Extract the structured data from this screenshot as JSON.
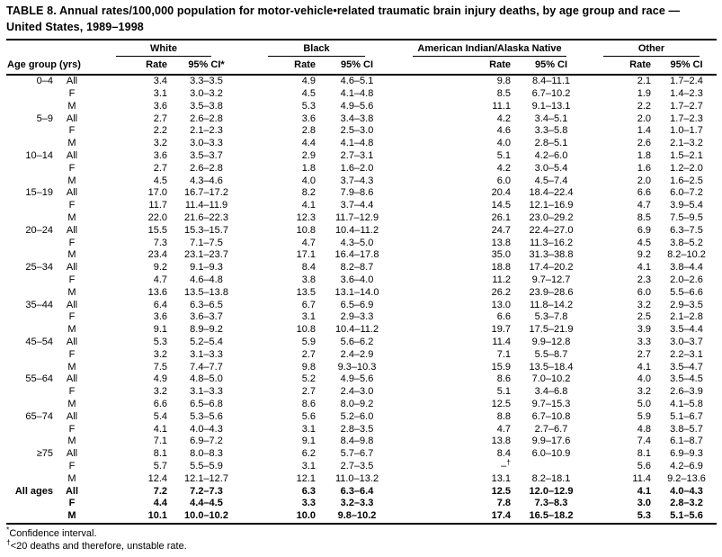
{
  "title": {
    "text": "TABLE 8. Annual rates/100,000 population for motor-vehicle•related traumatic brain injury deaths, by age group and race — United States, 1989–1998"
  },
  "table": {
    "group_headers": [
      "White",
      "Black",
      "American Indian/Alaska Native",
      "Other"
    ],
    "col_headers": {
      "age_group": "Age group (yrs)",
      "rate": "Rate",
      "ci_starred": "95% CI*",
      "ci": "95% CI"
    },
    "bold_from": 33,
    "rows": [
      [
        "0–4",
        "All",
        "3.4",
        "3.3–3.5",
        "4.9",
        "4.6–5.1",
        "9.8",
        "8.4–11.1",
        "2.1",
        "1.7–2.4"
      ],
      [
        "",
        "F",
        "3.1",
        "3.0–3.2",
        "4.5",
        "4.1–4.8",
        "8.5",
        "6.7–10.2",
        "1.9",
        "1.4–2.3"
      ],
      [
        "",
        "M",
        "3.6",
        "3.5–3.8",
        "5.3",
        "4.9–5.6",
        "11.1",
        "9.1–13.1",
        "2.2",
        "1.7–2.7"
      ],
      [
        "5–9",
        "All",
        "2.7",
        "2.6–2.8",
        "3.6",
        "3.4–3.8",
        "4.2",
        "3.4–5.1",
        "2.0",
        "1.7–2.3"
      ],
      [
        "",
        "F",
        "2.2",
        "2.1–2.3",
        "2.8",
        "2.5–3.0",
        "4.6",
        "3.3–5.8",
        "1.4",
        "1.0–1.7"
      ],
      [
        "",
        "M",
        "3.2",
        "3.0–3.3",
        "4.4",
        "4.1–4.8",
        "4.0",
        "2.8–5.1",
        "2.6",
        "2.1–3.2"
      ],
      [
        "10–14",
        "All",
        "3.6",
        "3.5–3.7",
        "2.9",
        "2.7–3.1",
        "5.1",
        "4.2–6.0",
        "1.8",
        "1.5–2.1"
      ],
      [
        "",
        "F",
        "2.7",
        "2.6–2.8",
        "1.8",
        "1.6–2.0",
        "4.2",
        "3.0–5.4",
        "1.6",
        "1.2–2.0"
      ],
      [
        "",
        "M",
        "4.5",
        "4.3–4.6",
        "4.0",
        "3.7–4.3",
        "6.0",
        "4.5–7.4",
        "2.0",
        "1.6–2.5"
      ],
      [
        "15–19",
        "All",
        "17.0",
        "16.7–17.2",
        "8.2",
        "7.9–8.6",
        "20.4",
        "18.4–22.4",
        "6.6",
        "6.0–7.2"
      ],
      [
        "",
        "F",
        "11.7",
        "11.4–11.9",
        "4.1",
        "3.7–4.4",
        "14.5",
        "12.1–16.9",
        "4.7",
        "3.9–5.4"
      ],
      [
        "",
        "M",
        "22.0",
        "21.6–22.3",
        "12.3",
        "11.7–12.9",
        "26.1",
        "23.0–29.2",
        "8.5",
        "7.5–9.5"
      ],
      [
        "20–24",
        "All",
        "15.5",
        "15.3–15.7",
        "10.8",
        "10.4–11.2",
        "24.7",
        "22.4–27.0",
        "6.9",
        "6.3–7.5"
      ],
      [
        "",
        "F",
        "7.3",
        "7.1–7.5",
        "4.7",
        "4.3–5.0",
        "13.8",
        "11.3–16.2",
        "4.5",
        "3.8–5.2"
      ],
      [
        "",
        "M",
        "23.4",
        "23.1–23.7",
        "17.1",
        "16.4–17.8",
        "35.0",
        "31.3–38.8",
        "9.2",
        "8.2–10.2"
      ],
      [
        "25–34",
        "All",
        "9.2",
        "9.1–9.3",
        "8.4",
        "8.2–8.7",
        "18.8",
        "17.4–20.2",
        "4.1",
        "3.8–4.4"
      ],
      [
        "",
        "F",
        "4.7",
        "4.6–4.8",
        "3.8",
        "3.6–4.0",
        "11.2",
        "9.7–12.7",
        "2.3",
        "2.0–2.6"
      ],
      [
        "",
        "M",
        "13.6",
        "13.5–13.8",
        "13.5",
        "13.1–14.0",
        "26.2",
        "23.9–28.6",
        "6.0",
        "5.5–6.6"
      ],
      [
        "35–44",
        "All",
        "6.4",
        "6.3–6.5",
        "6.7",
        "6.5–6.9",
        "13.0",
        "11.8–14.2",
        "3.2",
        "2.9–3.5"
      ],
      [
        "",
        "F",
        "3.6",
        "3.6–3.7",
        "3.1",
        "2.9–3.3",
        "6.6",
        "5.3–7.8",
        "2.5",
        "2.1–2.8"
      ],
      [
        "",
        "M",
        "9.1",
        "8.9–9.2",
        "10.8",
        "10.4–11.2",
        "19.7",
        "17.5–21.9",
        "3.9",
        "3.5–4.4"
      ],
      [
        "45–54",
        "All",
        "5.3",
        "5.2–5.4",
        "5.9",
        "5.6–6.2",
        "11.4",
        "9.9–12.8",
        "3.3",
        "3.0–3.7"
      ],
      [
        "",
        "F",
        "3.2",
        "3.1–3.3",
        "2.7",
        "2.4–2.9",
        "7.1",
        "5.5–8.7",
        "2.7",
        "2.2–3.1"
      ],
      [
        "",
        "M",
        "7.5",
        "7.4–7.7",
        "9.8",
        "9.3–10.3",
        "15.9",
        "13.5–18.4",
        "4.1",
        "3.5–4.7"
      ],
      [
        "55–64",
        "All",
        "4.9",
        "4.8–5.0",
        "5.2",
        "4.9–5.6",
        "8.6",
        "7.0–10.2",
        "4.0",
        "3.5–4.5"
      ],
      [
        "",
        "F",
        "3.2",
        "3.1–3.3",
        "2.7",
        "2.4–3.0",
        "5.1",
        "3.4–6.8",
        "3.2",
        "2.6–3.9"
      ],
      [
        "",
        "M",
        "6.6",
        "6.5–6.8",
        "8.6",
        "8.0–9.2",
        "12.5",
        "9.7–15.3",
        "5.0",
        "4.1–5.8"
      ],
      [
        "65–74",
        "All",
        "5.4",
        "5.3–5.6",
        "5.6",
        "5.2–6.0",
        "8.8",
        "6.7–10.8",
        "5.9",
        "5.1–6.7"
      ],
      [
        "",
        "F",
        "4.1",
        "4.0–4.3",
        "3.1",
        "2.8–3.5",
        "4.7",
        "2.7–6.7",
        "4.8",
        "3.8–5.7"
      ],
      [
        "",
        "M",
        "7.1",
        "6.9–7.2",
        "9.1",
        "8.4–9.8",
        "13.8",
        "9.9–17.6",
        "7.4",
        "6.1–8.7"
      ],
      [
        "≥75",
        "All",
        "8.1",
        "8.0–8.3",
        "6.2",
        "5.7–6.7",
        "8.4",
        "6.0–10.9",
        "8.1",
        "6.9–9.3"
      ],
      [
        "",
        "F",
        "5.7",
        "5.5–5.9",
        "3.1",
        "2.7–3.5",
        "–†",
        "",
        "5.6",
        "4.2–6.9"
      ],
      [
        "",
        "M",
        "12.4",
        "12.1–12.7",
        "12.1",
        "11.0–13.2",
        "13.1",
        "8.2–18.1",
        "11.4",
        "9.2–13.6"
      ],
      [
        "All ages",
        "All",
        "7.2",
        "7.2–7.3",
        "6.3",
        "6.3–6.4",
        "12.5",
        "12.0–12.9",
        "4.1",
        "4.0–4.3"
      ],
      [
        "",
        "F",
        "4.4",
        "4.4–4.5",
        "3.3",
        "3.2–3.3",
        "7.8",
        "7.3–8.3",
        "3.0",
        "2.8–3.2"
      ],
      [
        "",
        "M",
        "10.1",
        "10.0–10.2",
        "10.0",
        "9.8–10.2",
        "17.4",
        "16.5–18.2",
        "5.3",
        "5.1–5.6"
      ]
    ]
  },
  "footnotes": [
    {
      "marker": "*",
      "text": "Confidence interval."
    },
    {
      "marker": "†",
      "text": "<20 deaths and therefore, unstable rate."
    }
  ]
}
